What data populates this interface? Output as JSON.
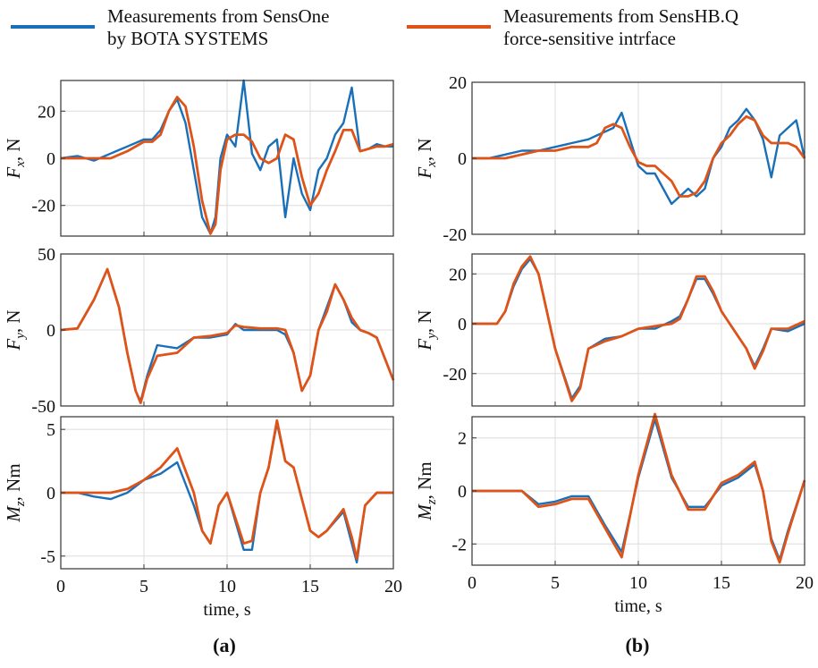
{
  "legend": {
    "series1": {
      "line1": "Measurements from SensOne",
      "line2": "by BOTA SYSTEMS",
      "color": "#1a70b8"
    },
    "series2": {
      "line1": "Measurements from SensHB.Q",
      "line2": "force-sensitive intrface",
      "color": "#de5318"
    }
  },
  "chart_data": [
    {
      "panel": "(a)",
      "type": "line",
      "ylabel": "F_x, N",
      "xlim": [
        0,
        20
      ],
      "ylim": [
        -33,
        33
      ],
      "yticks": [
        -20,
        0,
        20
      ],
      "grid": true,
      "x": [
        0,
        1,
        2,
        3,
        4,
        5,
        5.5,
        6,
        6.5,
        7,
        7.5,
        8,
        8.5,
        9,
        9.3,
        9.6,
        10,
        10.5,
        11,
        11.5,
        12,
        12.5,
        13,
        13.5,
        14,
        14.5,
        15,
        15.5,
        16,
        16.5,
        17,
        17.5,
        18,
        18.5,
        19,
        19.5,
        20
      ],
      "series": [
        {
          "name": "Measurements from SensOne by BOTA SYSTEMS",
          "values": [
            0,
            1,
            -1,
            2,
            5,
            8,
            8,
            12,
            20,
            25,
            15,
            -5,
            -25,
            -32,
            -25,
            0,
            10,
            5,
            33,
            2,
            -5,
            5,
            8,
            -25,
            0,
            -15,
            -22,
            -5,
            0,
            10,
            15,
            30,
            3,
            4,
            6,
            5,
            5
          ]
        },
        {
          "name": "Measurements from SensHB.Q force-sensitive intrface",
          "values": [
            0,
            0,
            0,
            0,
            3,
            7,
            7,
            10,
            20,
            26,
            22,
            5,
            -18,
            -32,
            -28,
            -5,
            8,
            10,
            10,
            7,
            0,
            -2,
            0,
            10,
            8,
            -8,
            -20,
            -15,
            -5,
            3,
            12,
            12,
            3,
            4,
            5,
            5,
            6
          ]
        }
      ]
    },
    {
      "panel": "(a)",
      "type": "line",
      "ylabel": "F_y, N",
      "xlim": [
        0,
        20
      ],
      "ylim": [
        -50,
        50
      ],
      "yticks": [
        -50,
        0,
        50
      ],
      "grid": true,
      "x": [
        0,
        1,
        2,
        2.8,
        3.5,
        4,
        4.5,
        4.8,
        5.2,
        5.8,
        7,
        8,
        9,
        10,
        10.5,
        11,
        12,
        13,
        13.5,
        14,
        14.5,
        15,
        15.5,
        16,
        16.5,
        17,
        17.5,
        18,
        18.5,
        19,
        20
      ],
      "series": [
        {
          "name": "Measurements from SensOne by BOTA SYSTEMS",
          "values": [
            0,
            1,
            20,
            40,
            15,
            -15,
            -40,
            -47,
            -30,
            -10,
            -12,
            -5,
            -5,
            -3,
            4,
            0,
            0,
            0,
            -3,
            -15,
            -40,
            -30,
            0,
            15,
            30,
            20,
            5,
            0,
            -2,
            -5,
            -33
          ]
        },
        {
          "name": "Measurements from SensHB.Q force-sensitive intrface",
          "values": [
            0,
            1,
            20,
            40,
            15,
            -15,
            -40,
            -48,
            -32,
            -17,
            -15,
            -5,
            -4,
            -2,
            3,
            2,
            1,
            1,
            0,
            -15,
            -40,
            -30,
            0,
            12,
            30,
            20,
            8,
            0,
            -2,
            -5,
            -33
          ]
        }
      ]
    },
    {
      "panel": "(a)",
      "type": "line",
      "ylabel": "M_z, Nm",
      "xlim": [
        0,
        20
      ],
      "ylim": [
        -6,
        6
      ],
      "yticks": [
        -5,
        0,
        5
      ],
      "grid": true,
      "x": [
        0,
        1,
        2,
        3,
        4,
        5,
        6,
        7,
        8,
        8.5,
        9,
        9.5,
        10,
        11,
        11.5,
        12,
        12.5,
        13,
        13.5,
        14,
        15,
        15.5,
        16,
        17,
        17.5,
        17.8,
        18.3,
        19,
        20
      ],
      "series": [
        {
          "name": "Measurements from SensOne by BOTA SYSTEMS",
          "values": [
            0,
            0,
            -0.3,
            -0.5,
            0,
            1,
            1.5,
            2.4,
            -1,
            -3,
            -4,
            -1,
            0,
            -4.5,
            -4.5,
            0,
            2,
            5.5,
            2.5,
            2,
            -3,
            -3.5,
            -3,
            -1.5,
            -4,
            -5.5,
            -1,
            0,
            0
          ]
        },
        {
          "name": "Measurements from SensHB.Q force-sensitive intrface",
          "values": [
            0,
            0,
            0,
            0,
            0.3,
            1,
            2,
            3.5,
            0,
            -3,
            -4,
            -1,
            0,
            -4,
            -3.8,
            0,
            2,
            5.7,
            2.5,
            2,
            -3,
            -3.5,
            -3,
            -1.3,
            -3.5,
            -5.2,
            -1,
            0,
            0
          ]
        }
      ]
    },
    {
      "panel": "(b)",
      "type": "line",
      "ylabel": "F_x, N",
      "xlim": [
        0,
        20
      ],
      "ylim": [
        -20,
        20
      ],
      "yticks": [
        -20,
        0,
        20
      ],
      "grid": true,
      "x": [
        0,
        1,
        2,
        3,
        4,
        5,
        6,
        7,
        7.5,
        8,
        8.5,
        9,
        9.5,
        10,
        10.5,
        11,
        11.5,
        12,
        12.5,
        13,
        13.5,
        14,
        14.5,
        15,
        15.5,
        16,
        16.5,
        17,
        17.5,
        18,
        18.5,
        19,
        19.5,
        20
      ],
      "series": [
        {
          "name": "Measurements from SensOne by BOTA SYSTEMS",
          "values": [
            0,
            0,
            1,
            2,
            2,
            3,
            4,
            5,
            6,
            7,
            8,
            12,
            5,
            -2,
            -4,
            -4,
            -8,
            -12,
            -10,
            -8,
            -10,
            -8,
            0,
            3,
            8,
            10,
            13,
            10,
            5,
            -5,
            6,
            8,
            10,
            0
          ]
        },
        {
          "name": "Measurements from SensHB.Q force-sensitive intrface",
          "values": [
            0,
            0,
            0,
            1,
            2,
            2,
            3,
            3,
            4,
            8,
            9,
            8,
            3,
            -1,
            -2,
            -2,
            -4,
            -6,
            -10,
            -10,
            -9,
            -6,
            0,
            4,
            6,
            9,
            11,
            10,
            6,
            4,
            4,
            4,
            3,
            0
          ]
        }
      ]
    },
    {
      "panel": "(b)",
      "type": "line",
      "ylabel": "F_y, N",
      "xlim": [
        0,
        20
      ],
      "ylim": [
        -33,
        28
      ],
      "yticks": [
        -20,
        0,
        20
      ],
      "grid": true,
      "x": [
        0,
        1,
        1.5,
        2,
        2.5,
        3,
        3.5,
        4,
        5,
        6,
        6.5,
        7,
        8,
        9,
        10,
        11,
        12,
        12.5,
        13,
        13.5,
        14,
        14.5,
        15,
        16,
        16.5,
        17,
        17.5,
        18,
        19,
        20
      ],
      "series": [
        {
          "name": "Measurements from SensOne by BOTA SYSTEMS",
          "values": [
            0,
            0,
            0,
            5,
            15,
            22,
            26,
            20,
            -10,
            -30,
            -25,
            -10,
            -6,
            -5,
            -2,
            -2,
            1,
            3,
            10,
            18,
            18,
            12,
            5,
            -5,
            -10,
            -17,
            -10,
            -2,
            -3,
            0
          ]
        },
        {
          "name": "Measurements from SensHB.Q force-sensitive intrface",
          "values": [
            0,
            0,
            0,
            5,
            16,
            23,
            27,
            20,
            -10,
            -31,
            -26,
            -10,
            -7,
            -5,
            -2,
            -1,
            0,
            2,
            10,
            19,
            19,
            13,
            5,
            -5,
            -10,
            -18,
            -11,
            -2,
            -2,
            1
          ]
        }
      ]
    },
    {
      "panel": "(b)",
      "type": "line",
      "ylabel": "M_z, Nm",
      "xlim": [
        0,
        20
      ],
      "ylim": [
        -2.8,
        2.8
      ],
      "yticks": [
        -2,
        0,
        2
      ],
      "grid": true,
      "x": [
        0,
        2,
        3,
        4,
        5,
        6,
        7,
        8,
        9,
        10,
        11,
        12,
        13,
        14,
        15,
        16,
        17,
        17.5,
        18,
        18.5,
        19,
        20
      ],
      "series": [
        {
          "name": "Measurements from SensOne by BOTA SYSTEMS",
          "values": [
            0,
            0,
            0,
            -0.5,
            -0.4,
            -0.2,
            -0.2,
            -1.3,
            -2.3,
            0.5,
            2.7,
            0.5,
            -0.6,
            -0.6,
            0.2,
            0.5,
            1.0,
            0,
            -1.8,
            -2.6,
            -1.5,
            0.4
          ]
        },
        {
          "name": "Measurements from SensHB.Q force-sensitive intrface",
          "values": [
            0,
            0,
            0,
            -0.6,
            -0.5,
            -0.3,
            -0.3,
            -1.4,
            -2.5,
            0.6,
            2.9,
            0.6,
            -0.7,
            -0.7,
            0.3,
            0.6,
            1.1,
            0,
            -1.9,
            -2.7,
            -1.6,
            0.4
          ]
        }
      ]
    }
  ],
  "axes": {
    "xticks": [
      "0",
      "5",
      "10",
      "15",
      "20"
    ],
    "xlabel": "time, s"
  },
  "captions": {
    "a": "(a)",
    "b": "(b)"
  }
}
